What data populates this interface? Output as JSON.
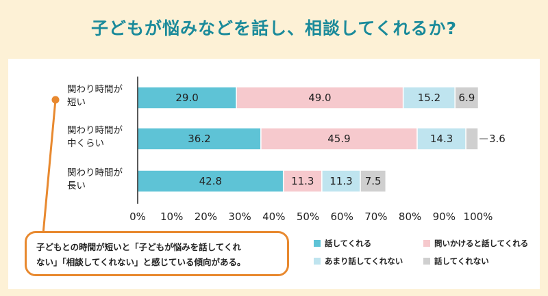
{
  "title": "子どもが悩みなどを話し、相談してくれるか?",
  "note": [
    "子どもとの時間が短いと「子どもが悩みを話してくれ",
    "ない」「相談してくれない」と感じている傾向がある。"
  ],
  "colors": {
    "talks": "#5ec3d6",
    "conditional": "#f6c9cd",
    "rarely": "#bfe4ef",
    "never": "#cfcfcf",
    "accent": "#e8892f",
    "title": "#1a8a9a"
  },
  "chart_data": {
    "type": "bar",
    "orientation": "horizontal-stacked",
    "categories": [
      [
        "関わり時間が",
        "短い"
      ],
      [
        "関わり時間が",
        "中くらい"
      ],
      [
        "関わり時間が",
        "長い"
      ]
    ],
    "series": [
      {
        "name": "話してくれる",
        "values": [
          29.0,
          36.2,
          42.8
        ],
        "color": "#5ec3d6"
      },
      {
        "name": "問いかけると話してくれる",
        "values": [
          49.0,
          45.9,
          11.3
        ],
        "color": "#f6c9cd"
      },
      {
        "name": "あまり話してくれない",
        "values": [
          15.2,
          14.3,
          11.3
        ],
        "color": "#bfe4ef"
      },
      {
        "name": "話してくれない",
        "values": [
          6.9,
          3.6,
          7.5
        ],
        "color": "#cfcfcf"
      }
    ],
    "data_labels": [
      [
        "29.0",
        "49.0",
        "15.2",
        "6.9"
      ],
      [
        "36.2",
        "45.9",
        "14.3",
        "3.6"
      ],
      [
        "42.8",
        "11.3",
        "11.3",
        "7.5"
      ]
    ],
    "x_ticks": [
      "0%",
      "10%",
      "20%",
      "30%",
      "40%",
      "50%",
      "60%",
      "70%",
      "80%",
      "90%",
      "100%"
    ],
    "xlim": [
      0,
      100
    ],
    "legend": "bottom-right"
  }
}
